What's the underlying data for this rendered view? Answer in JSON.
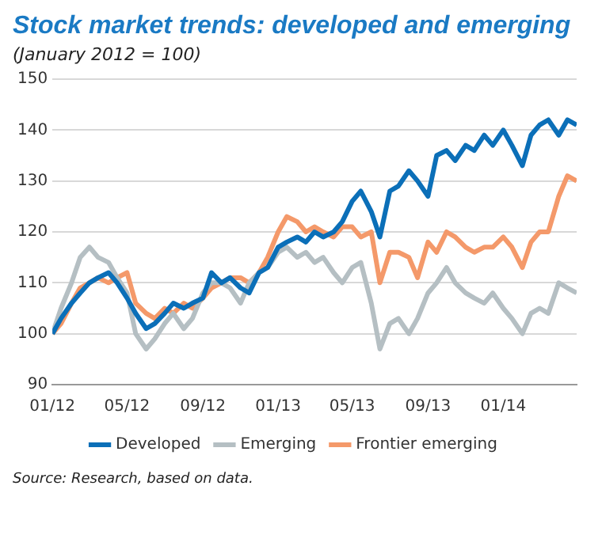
{
  "chart_data": {
    "type": "line",
    "title": "Stock market trends: developed and emerging",
    "subtitle": "(January 2012 = 100)",
    "x": [
      "2012-01-01",
      "2012-01-15",
      "2012-02-01",
      "2012-02-15",
      "2012-03-01",
      "2012-03-15",
      "2012-04-01",
      "2012-04-15",
      "2012-05-01",
      "2012-05-15",
      "2012-06-01",
      "2012-06-15",
      "2012-07-01",
      "2012-07-15",
      "2012-08-01",
      "2012-08-15",
      "2012-09-01",
      "2012-09-15",
      "2012-10-01",
      "2012-10-15",
      "2012-11-01",
      "2012-11-15",
      "2012-12-01",
      "2012-12-15",
      "2013-01-01",
      "2013-01-15",
      "2013-02-01",
      "2013-02-15",
      "2013-03-01",
      "2013-03-15",
      "2013-04-01",
      "2013-04-15",
      "2013-05-01",
      "2013-05-15",
      "2013-06-01",
      "2013-06-15",
      "2013-07-01",
      "2013-07-15",
      "2013-08-01",
      "2013-08-15",
      "2013-09-01",
      "2013-09-15",
      "2013-10-01",
      "2013-10-15",
      "2013-11-01",
      "2013-11-15",
      "2013-12-01",
      "2013-12-15",
      "2014-01-01",
      "2014-01-15",
      "2014-02-01",
      "2014-02-15",
      "2014-03-01",
      "2014-03-15",
      "2014-04-01",
      "2014-04-15",
      "2014-04-30"
    ],
    "series": [
      {
        "name": "Developed",
        "color": "#0b6fb8",
        "values": [
          100,
          103,
          106,
          108,
          110,
          111,
          112,
          110,
          107,
          104,
          101,
          102,
          104,
          106,
          105,
          106,
          107,
          112,
          110,
          111,
          109,
          108,
          112,
          113,
          117,
          118,
          119,
          118,
          120,
          119,
          120,
          122,
          126,
          128,
          124,
          119,
          128,
          129,
          132,
          130,
          127,
          135,
          136,
          134,
          137,
          136,
          139,
          137,
          140,
          137,
          133,
          139,
          141,
          142,
          139,
          142,
          141
        ]
      },
      {
        "name": "Emerging",
        "color": "#b5bfc3",
        "values": [
          100,
          105,
          110,
          115,
          117,
          115,
          114,
          111,
          108,
          100,
          97,
          99,
          102,
          104,
          101,
          103,
          108,
          110,
          110,
          109,
          106,
          110,
          112,
          113,
          116,
          117,
          115,
          116,
          114,
          115,
          112,
          110,
          113,
          114,
          106,
          97,
          102,
          103,
          100,
          103,
          108,
          110,
          113,
          110,
          108,
          107,
          106,
          108,
          105,
          103,
          100,
          104,
          105,
          104,
          110,
          109,
          108
        ]
      },
      {
        "name": "Frontier emerging",
        "color": "#f4996a",
        "values": [
          100,
          102,
          106,
          109,
          110,
          111,
          110,
          111,
          112,
          106,
          104,
          103,
          105,
          104,
          106,
          105,
          107,
          109,
          110,
          111,
          111,
          110,
          112,
          115,
          120,
          123,
          122,
          120,
          121,
          120,
          119,
          121,
          121,
          119,
          120,
          110,
          116,
          116,
          115,
          111,
          118,
          116,
          120,
          119,
          117,
          116,
          117,
          117,
          119,
          117,
          113,
          118,
          120,
          120,
          127,
          131,
          130
        ]
      }
    ],
    "xlim": [
      "2012-01-01",
      "2014-04-30"
    ],
    "xticks": [
      {
        "value": "2012-01-01",
        "label": "01/12"
      },
      {
        "value": "2012-05-01",
        "label": "05/12"
      },
      {
        "value": "2012-09-01",
        "label": "09/12"
      },
      {
        "value": "2013-01-01",
        "label": "01/13"
      },
      {
        "value": "2013-05-01",
        "label": "05/13"
      },
      {
        "value": "2013-09-01",
        "label": "09/13"
      },
      {
        "value": "2014-01-01",
        "label": "01/14"
      }
    ],
    "ylim": [
      90,
      150
    ],
    "yticks": [
      90,
      100,
      110,
      120,
      130,
      140,
      150
    ],
    "grid": "y",
    "legend": "bottom",
    "marker": "none",
    "line_style": "solid",
    "annotations": [
      "Source: Research, based on data."
    ]
  }
}
